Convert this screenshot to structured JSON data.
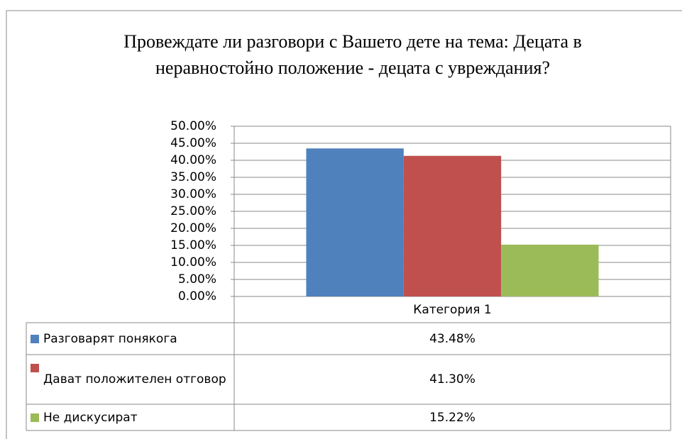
{
  "chart_data": {
    "type": "bar",
    "title": "Провеждате ли разговори с Вашето дете на тема: Децата в неравностойно положение - децата с увреждания?",
    "categories": [
      "Категория 1"
    ],
    "series": [
      {
        "name": "Разговарят понякога",
        "color": "#4f81bd",
        "values": [
          43.48
        ],
        "value_labels": [
          "43.48%"
        ]
      },
      {
        "name": "Дават положителен отговор",
        "color": "#c0504d",
        "values": [
          41.3
        ],
        "value_labels": [
          "41.30%"
        ]
      },
      {
        "name": "Не дискусират",
        "color": "#9bbb59",
        "values": [
          15.22
        ],
        "value_labels": [
          "15.22%"
        ]
      }
    ],
    "ylim": [
      0,
      50
    ],
    "yticks": [
      {
        "value": 0,
        "label": "0.00%"
      },
      {
        "value": 5,
        "label": "5.00%"
      },
      {
        "value": 10,
        "label": "10.00%"
      },
      {
        "value": 15,
        "label": "15.00%"
      },
      {
        "value": 20,
        "label": "20.00%"
      },
      {
        "value": 25,
        "label": "25.00%"
      },
      {
        "value": 30,
        "label": "30.00%"
      },
      {
        "value": 35,
        "label": "35.00%"
      },
      {
        "value": 40,
        "label": "40.00%"
      },
      {
        "value": 45,
        "label": "45.00%"
      },
      {
        "value": 50,
        "label": "50.00%"
      }
    ],
    "grid": true
  }
}
